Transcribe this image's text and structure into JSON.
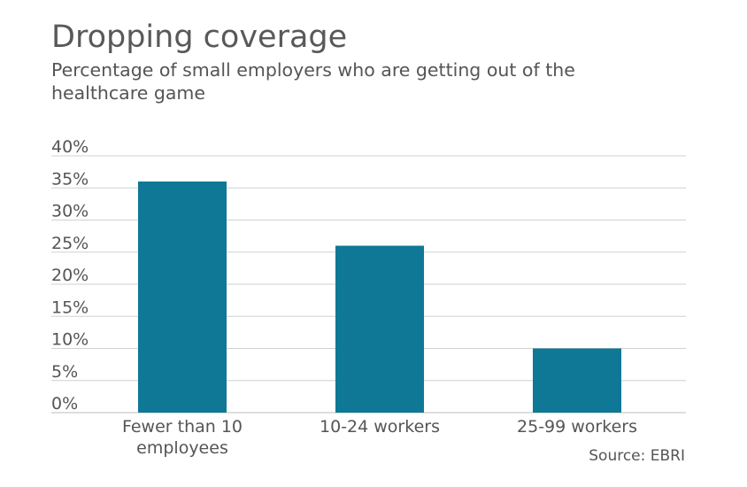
{
  "chart_data": {
    "type": "bar",
    "title": "Dropping coverage",
    "subtitle": "Percentage of small employers who are getting out of the healthcare game",
    "categories": [
      [
        "Fewer than 10",
        "employees"
      ],
      [
        "10-24 workers"
      ],
      [
        "25-99 workers"
      ]
    ],
    "values": [
      36,
      26,
      10
    ],
    "ylim": [
      0,
      40
    ],
    "yticks": [
      "0%",
      "5%",
      "10%",
      "15%",
      "20%",
      "25%",
      "30%",
      "35%",
      "40%"
    ],
    "ytick_values": [
      0,
      5,
      10,
      15,
      20,
      25,
      30,
      35,
      40
    ],
    "grid": true,
    "bar_color": "#0e7896",
    "source": "Source: EBRI"
  }
}
